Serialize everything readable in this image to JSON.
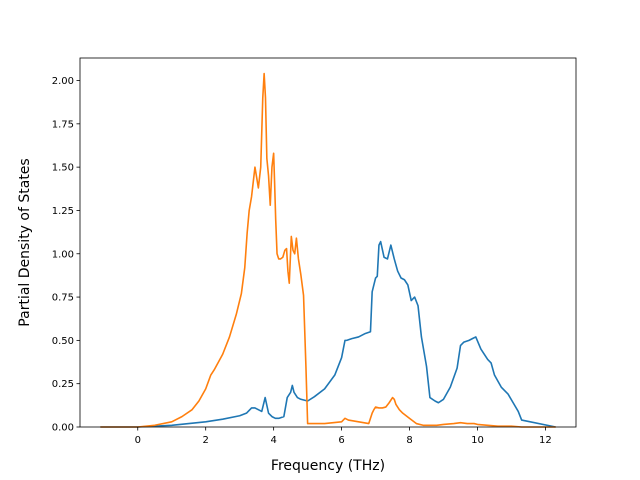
{
  "chart_data": {
    "type": "line",
    "title": "",
    "xlabel": "Frequency (THz)",
    "ylabel": "Partial Density of States",
    "xlim": [
      -1.7,
      12.9
    ],
    "ylim": [
      0,
      2.13
    ],
    "xticks": [
      0,
      2,
      4,
      6,
      8,
      10,
      12
    ],
    "yticks": [
      0.0,
      0.25,
      0.5,
      0.75,
      1.0,
      1.25,
      1.5,
      1.75,
      2.0
    ],
    "xtick_labels": [
      "0",
      "2",
      "4",
      "6",
      "8",
      "10",
      "12"
    ],
    "ytick_labels": [
      "0.00",
      "0.25",
      "0.50",
      "0.75",
      "1.00",
      "1.25",
      "1.50",
      "1.75",
      "2.00"
    ],
    "grid": false,
    "legend": "none",
    "series": [
      {
        "color": "#1f77b4",
        "x": [
          -1.1,
          0.0,
          0.5,
          1.0,
          1.5,
          2.0,
          2.5,
          3.0,
          3.2,
          3.35,
          3.45,
          3.55,
          3.65,
          3.75,
          3.85,
          3.95,
          4.05,
          4.15,
          4.3,
          4.4,
          4.5,
          4.55,
          4.6,
          4.7,
          4.8,
          4.9,
          5.0,
          5.2,
          5.5,
          5.8,
          6.0,
          6.1,
          6.15,
          6.3,
          6.5,
          6.7,
          6.85,
          6.9,
          7.0,
          7.05,
          7.1,
          7.15,
          7.25,
          7.35,
          7.45,
          7.55,
          7.65,
          7.75,
          7.85,
          7.95,
          8.05,
          8.15,
          8.25,
          8.35,
          8.5,
          8.6,
          8.75,
          8.85,
          9.0,
          9.2,
          9.4,
          9.5,
          9.6,
          9.75,
          9.85,
          9.95,
          10.1,
          10.3,
          10.4,
          10.5,
          10.7,
          10.9,
          11.05,
          11.2,
          11.3,
          12.3
        ],
        "y": [
          0.0,
          0.0,
          0.005,
          0.01,
          0.02,
          0.03,
          0.045,
          0.065,
          0.08,
          0.11,
          0.11,
          0.1,
          0.09,
          0.17,
          0.08,
          0.06,
          0.05,
          0.05,
          0.06,
          0.17,
          0.2,
          0.24,
          0.2,
          0.17,
          0.16,
          0.155,
          0.15,
          0.175,
          0.22,
          0.3,
          0.4,
          0.5,
          0.5,
          0.51,
          0.52,
          0.54,
          0.55,
          0.78,
          0.86,
          0.87,
          1.05,
          1.07,
          0.98,
          0.97,
          1.05,
          0.97,
          0.9,
          0.86,
          0.85,
          0.82,
          0.73,
          0.75,
          0.7,
          0.52,
          0.35,
          0.17,
          0.15,
          0.14,
          0.16,
          0.23,
          0.34,
          0.47,
          0.49,
          0.5,
          0.51,
          0.52,
          0.45,
          0.39,
          0.37,
          0.3,
          0.23,
          0.19,
          0.14,
          0.09,
          0.04,
          0.0
        ]
      },
      {
        "color": "#ff7f0e",
        "x": [
          -1.1,
          0.0,
          0.5,
          1.0,
          1.3,
          1.6,
          1.8,
          2.0,
          2.15,
          2.25,
          2.5,
          2.7,
          2.9,
          3.05,
          3.15,
          3.22,
          3.28,
          3.35,
          3.45,
          3.55,
          3.62,
          3.68,
          3.72,
          3.76,
          3.8,
          3.85,
          3.9,
          3.95,
          4.0,
          4.03,
          4.06,
          4.1,
          4.15,
          4.2,
          4.27,
          4.33,
          4.38,
          4.42,
          4.46,
          4.52,
          4.57,
          4.62,
          4.67,
          4.73,
          4.8,
          4.88,
          4.95,
          5.0,
          5.5,
          6.0,
          6.05,
          6.1,
          6.2,
          6.5,
          6.8,
          6.9,
          6.95,
          7.0,
          7.1,
          7.2,
          7.3,
          7.4,
          7.5,
          7.55,
          7.6,
          7.7,
          7.8,
          8.0,
          8.2,
          8.4,
          8.6,
          8.8,
          9.0,
          9.3,
          9.5,
          9.7,
          9.9,
          10.0,
          10.3,
          10.6,
          11.0,
          11.3,
          11.6,
          12.3
        ],
        "y": [
          0.0,
          0.0,
          0.01,
          0.03,
          0.06,
          0.1,
          0.15,
          0.22,
          0.3,
          0.33,
          0.42,
          0.52,
          0.65,
          0.77,
          0.92,
          1.12,
          1.25,
          1.33,
          1.5,
          1.38,
          1.5,
          1.9,
          2.04,
          1.9,
          1.55,
          1.45,
          1.28,
          1.5,
          1.58,
          1.4,
          1.2,
          1.0,
          0.97,
          0.97,
          0.98,
          1.02,
          1.03,
          0.9,
          0.83,
          1.1,
          1.02,
          1.0,
          1.09,
          0.97,
          0.88,
          0.76,
          0.35,
          0.02,
          0.02,
          0.03,
          0.04,
          0.05,
          0.04,
          0.03,
          0.02,
          0.08,
          0.1,
          0.115,
          0.11,
          0.11,
          0.115,
          0.14,
          0.17,
          0.16,
          0.13,
          0.1,
          0.08,
          0.05,
          0.02,
          0.01,
          0.01,
          0.01,
          0.015,
          0.02,
          0.025,
          0.02,
          0.02,
          0.015,
          0.01,
          0.005,
          0.005,
          0.0,
          0.0,
          0.0
        ]
      }
    ]
  }
}
